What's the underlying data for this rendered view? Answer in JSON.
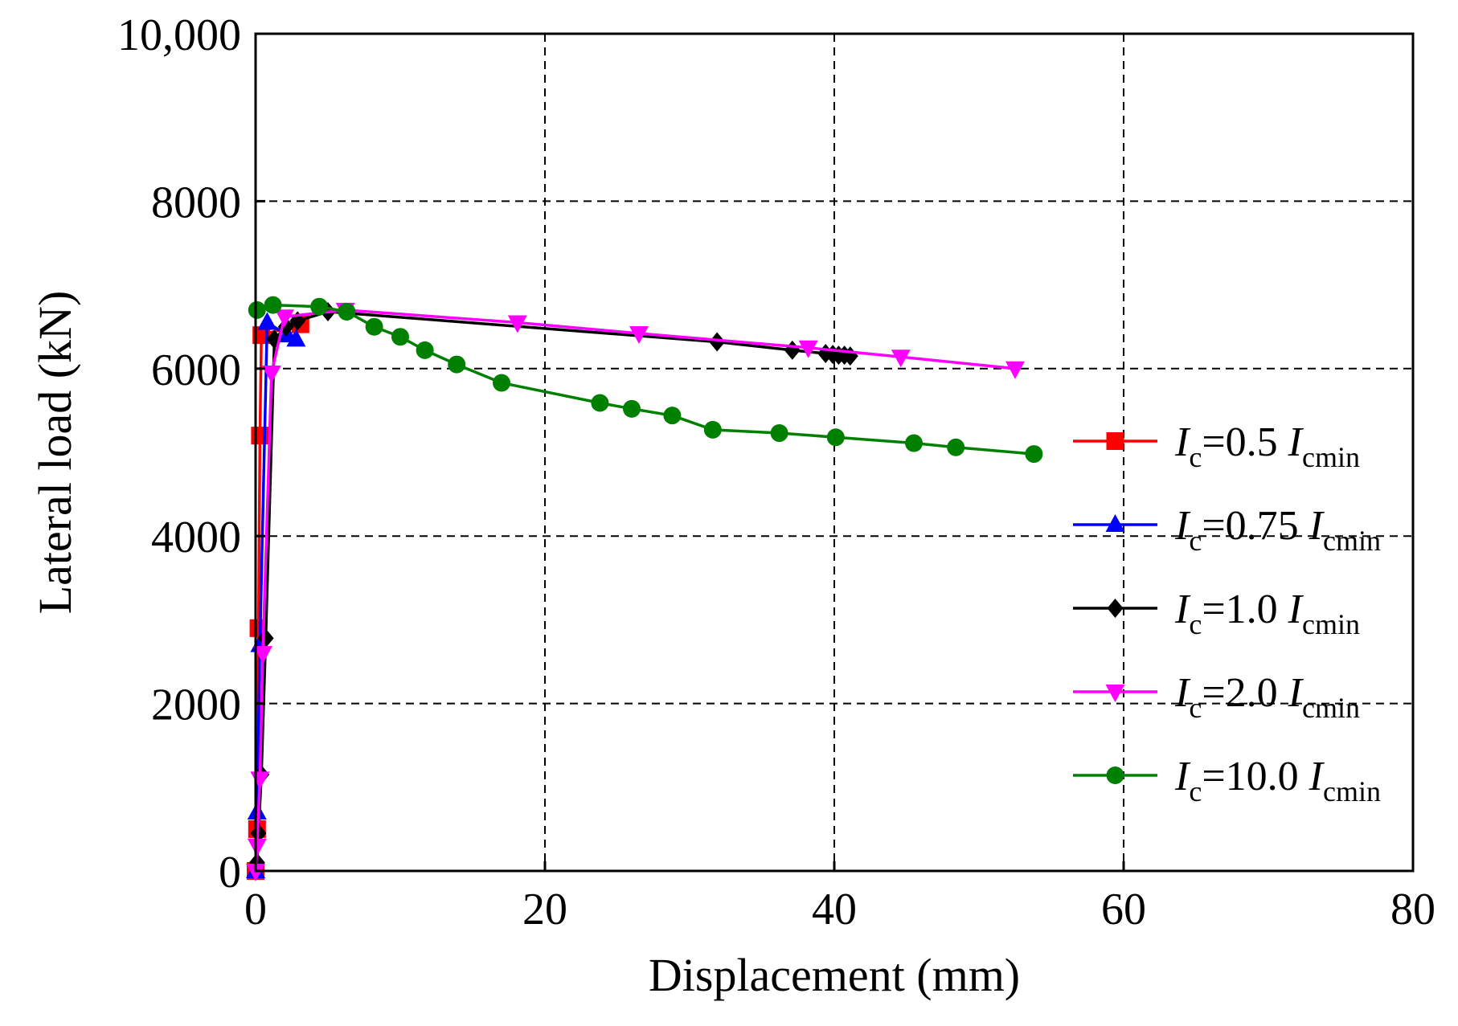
{
  "chart_data": {
    "type": "line",
    "xlabel": "Displacement (mm)",
    "ylabel": "Lateral load (kN)",
    "xlim": [
      0,
      80
    ],
    "ylim": [
      0,
      10000
    ],
    "xticks": [
      0,
      20,
      40,
      60,
      80
    ],
    "yticks": [
      0,
      2000,
      4000,
      6000,
      8000,
      10000
    ],
    "xtick_labels": [
      "0",
      "20",
      "40",
      "60",
      "80"
    ],
    "ytick_labels": [
      "0",
      "2000",
      "4000",
      "6000",
      "8000",
      "10,000"
    ],
    "grid": true,
    "legend_position": "right",
    "series": [
      {
        "name": "Ic=0.5 Icmin",
        "label_main": "I",
        "label_sub1": "c",
        "label_mid": "=0.5 ",
        "label_main2": "I",
        "label_sub2": "cmin",
        "color": "#ff0000",
        "marker": "square",
        "x": [
          0.0,
          0.1,
          0.2,
          0.3,
          0.4,
          3.1
        ],
        "y": [
          0,
          500,
          2900,
          5200,
          6400,
          6530
        ]
      },
      {
        "name": "Ic=0.75 Icmin",
        "label_main": "I",
        "label_sub1": "c",
        "label_mid": "=0.75 ",
        "label_main2": "I",
        "label_sub2": "cmin",
        "color": "#0000ff",
        "marker": "triangle-up",
        "x": [
          0.0,
          0.1,
          0.3,
          0.8,
          2.2,
          2.8
        ],
        "y": [
          0,
          700,
          2700,
          6550,
          6400,
          6350
        ]
      },
      {
        "name": "Ic=1.0 Icmin",
        "label_main": "I",
        "label_sub1": "c",
        "label_mid": "=1.0 ",
        "label_main2": "I",
        "label_sub2": "cmin",
        "color": "#000000",
        "marker": "diamond",
        "x": [
          0.1,
          0.2,
          0.4,
          0.7,
          1.3,
          2.1,
          2.9,
          5.0,
          31.9,
          37.1,
          39.4,
          39.9,
          40.3,
          40.7,
          41.1
        ],
        "y": [
          100,
          450,
          1150,
          2780,
          6350,
          6500,
          6570,
          6680,
          6320,
          6220,
          6180,
          6170,
          6160,
          6160,
          6150
        ]
      },
      {
        "name": "Ic=2.0 Icmin",
        "label_main": "I",
        "label_sub1": "c",
        "label_mid": "=2.0 ",
        "label_main2": "I",
        "label_sub2": "cmin",
        "color": "#ff00ff",
        "marker": "triangle-down",
        "x": [
          0.0,
          0.1,
          0.3,
          0.5,
          1.1,
          2.0,
          6.2,
          18.1,
          26.5,
          38.2,
          44.6,
          52.5
        ],
        "y": [
          0,
          300,
          1100,
          2600,
          5950,
          6620,
          6700,
          6550,
          6420,
          6250,
          6140,
          6000
        ]
      },
      {
        "name": "Ic=10.0 Icmin",
        "label_main": "I",
        "label_sub1": "c",
        "label_mid": "=10.0 ",
        "label_main2": "I",
        "label_sub2": "cmin",
        "color": "#008000",
        "marker": "circle",
        "x": [
          0.1,
          1.2,
          4.4,
          6.3,
          8.2,
          10.0,
          11.7,
          13.9,
          17.0,
          23.8,
          26.0,
          28.8,
          31.6,
          36.2,
          40.1,
          45.5,
          48.4,
          53.8
        ],
        "y": [
          6700,
          6760,
          6740,
          6680,
          6500,
          6380,
          6220,
          6050,
          5830,
          5590,
          5520,
          5440,
          5270,
          5230,
          5180,
          5110,
          5060,
          4980
        ]
      }
    ]
  }
}
